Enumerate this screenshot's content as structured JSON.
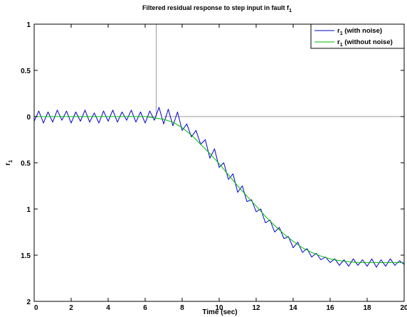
{
  "chart_data": {
    "type": "line",
    "title": {
      "text": "Filtered residual response to step input in fault f",
      "subscript": "1"
    },
    "xlabel": "Time (sec)",
    "ylabel": {
      "text": "r",
      "subscript": "1"
    },
    "xlim": [
      0,
      20
    ],
    "ylim": [
      -2,
      1
    ],
    "x_ticks": [
      0,
      2,
      4,
      6,
      8,
      10,
      12,
      14,
      16,
      18,
      20
    ],
    "x_tick_labels": [
      "0",
      "2",
      "4",
      "6",
      "8",
      "10",
      "12",
      "14",
      "16",
      "18",
      "20"
    ],
    "y_ticks": [
      1,
      0.5,
      0,
      -0.5,
      -1,
      -1.5,
      -2
    ],
    "y_tick_labels": [
      "1",
      "0.5",
      "0",
      "0.5",
      "1",
      "1.5",
      "2"
    ],
    "grid": false,
    "legend_position": "top-right",
    "series": [
      {
        "name": "r",
        "name_subscript": "1",
        "name_suffix": " (with noise)",
        "color": "#0000cc",
        "x": [
          0,
          0.25,
          0.5,
          0.75,
          1,
          1.25,
          1.5,
          1.75,
          2,
          2.25,
          2.5,
          2.75,
          3,
          3.25,
          3.5,
          3.75,
          4,
          4.25,
          4.5,
          4.75,
          5,
          5.25,
          5.5,
          5.75,
          6,
          6.25,
          6.5,
          6.75,
          7,
          7.25,
          7.5,
          7.75,
          8,
          8.25,
          8.5,
          8.75,
          9,
          9.25,
          9.5,
          9.75,
          10,
          10.25,
          10.5,
          10.75,
          11,
          11.25,
          11.5,
          11.75,
          12,
          12.25,
          12.5,
          12.75,
          13,
          13.25,
          13.5,
          13.75,
          14,
          14.25,
          14.5,
          14.75,
          15,
          15.25,
          15.5,
          15.75,
          16,
          16.25,
          16.5,
          16.75,
          17,
          17.25,
          17.5,
          17.75,
          18,
          18.25,
          18.5,
          18.75,
          19,
          19.25,
          19.5,
          19.75,
          20
        ],
        "y": [
          -0.05,
          0.06,
          -0.07,
          0.05,
          -0.06,
          0.07,
          -0.04,
          0.06,
          -0.07,
          0.05,
          -0.05,
          0.07,
          -0.06,
          0.04,
          -0.07,
          0.06,
          -0.05,
          0.07,
          -0.06,
          0.05,
          -0.04,
          0.07,
          -0.06,
          0.05,
          -0.07,
          0.06,
          -0.04,
          0.1,
          -0.08,
          0.08,
          -0.1,
          0.05,
          -0.15,
          -0.08,
          -0.22,
          -0.15,
          -0.3,
          -0.25,
          -0.45,
          -0.35,
          -0.55,
          -0.5,
          -0.68,
          -0.62,
          -0.82,
          -0.75,
          -0.92,
          -0.9,
          -1.03,
          -1.0,
          -1.15,
          -1.12,
          -1.25,
          -1.2,
          -1.32,
          -1.3,
          -1.42,
          -1.36,
          -1.47,
          -1.43,
          -1.52,
          -1.48,
          -1.55,
          -1.52,
          -1.58,
          -1.54,
          -1.61,
          -1.55,
          -1.62,
          -1.54,
          -1.61,
          -1.55,
          -1.62,
          -1.54,
          -1.63,
          -1.55,
          -1.62,
          -1.54,
          -1.61,
          -1.56,
          -1.6
        ]
      },
      {
        "name": "r",
        "name_subscript": "1",
        "name_suffix": " (without noise)",
        "color": "#00bb00",
        "x": [
          0,
          1,
          2,
          3,
          4,
          5,
          6,
          7,
          7.5,
          8,
          8.5,
          9,
          9.5,
          10,
          10.5,
          11,
          11.5,
          12,
          12.5,
          13,
          13.5,
          14,
          14.5,
          15,
          15.5,
          16,
          16.5,
          17,
          17.5,
          18,
          18.5,
          19,
          19.5,
          20
        ],
        "y": [
          0,
          0,
          0,
          0,
          0,
          0,
          0,
          -0.03,
          -0.06,
          -0.12,
          -0.2,
          -0.3,
          -0.4,
          -0.51,
          -0.63,
          -0.75,
          -0.86,
          -0.97,
          -1.08,
          -1.18,
          -1.27,
          -1.35,
          -1.42,
          -1.47,
          -1.51,
          -1.54,
          -1.56,
          -1.57,
          -1.58,
          -1.58,
          -1.58,
          -1.58,
          -1.58,
          -1.58
        ]
      },
      {
        "color": "#999999",
        "x": [
          0,
          6.6,
          6.6,
          20
        ],
        "y": [
          0,
          0,
          1,
          1
        ]
      },
      {
        "color": "#999999",
        "x": [
          7.0,
          20
        ],
        "y": [
          0,
          0
        ]
      }
    ]
  }
}
